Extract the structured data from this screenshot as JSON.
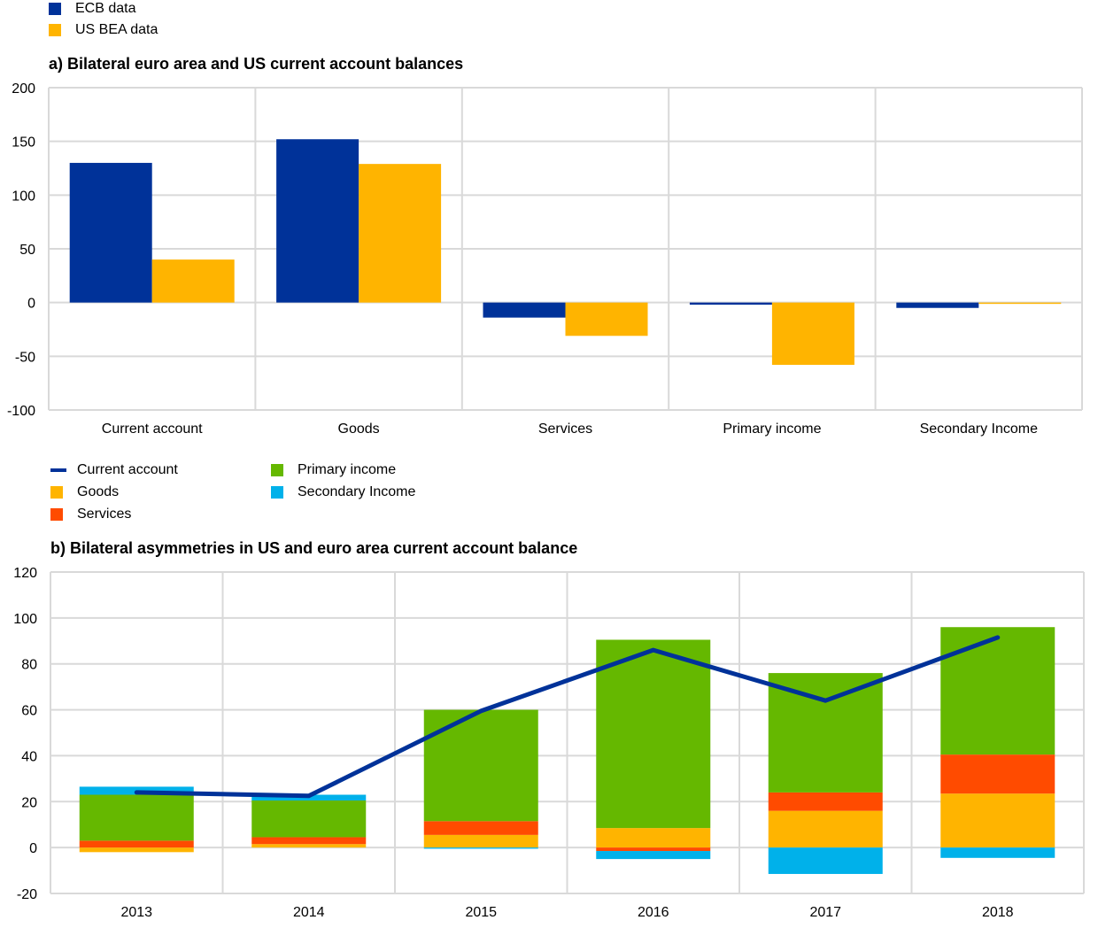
{
  "colors": {
    "ecb": "#003299",
    "us_bea": "#FFB400",
    "current_account": "#003299",
    "goods": "#FFB400",
    "services": "#FF4B00",
    "primary_income": "#65B800",
    "secondary_income": "#00B1EA",
    "grid": "#d9d9d9"
  },
  "chart_a_legend": [
    {
      "label": "ECB data",
      "color_key": "ecb",
      "kind": "box"
    },
    {
      "label": "US BEA data",
      "color_key": "us_bea",
      "kind": "box"
    }
  ],
  "chart_b_legend": [
    {
      "label": "Current account",
      "color_key": "current_account",
      "kind": "line"
    },
    {
      "label": "Goods",
      "color_key": "goods",
      "kind": "box"
    },
    {
      "label": "Services",
      "color_key": "services",
      "kind": "box"
    },
    {
      "label": "Primary income",
      "color_key": "primary_income",
      "kind": "box"
    },
    {
      "label": "Secondary Income",
      "color_key": "secondary_income",
      "kind": "box"
    }
  ],
  "chart_data": [
    {
      "type": "bar",
      "title": "a) Bilateral euro area and US current account balances",
      "categories": [
        "Current account",
        "Goods",
        "Services",
        "Primary income",
        "Secondary Income"
      ],
      "series": [
        {
          "name": "ECB data",
          "values": [
            130,
            152,
            -14,
            -2,
            -5
          ]
        },
        {
          "name": "US BEA data",
          "values": [
            40,
            129,
            -31,
            -58,
            -1
          ]
        }
      ],
      "xlabel": "",
      "ylabel": "",
      "ylim": [
        -100,
        200
      ],
      "yticks": [
        200,
        150,
        100,
        50,
        0,
        -50,
        -100
      ],
      "grid": true,
      "legend": "top-left"
    },
    {
      "type": "bar",
      "stacked": true,
      "title": "b) Bilateral asymmetries in US and euro area current account balance",
      "categories": [
        "2013",
        "2014",
        "2015",
        "2016",
        "2017",
        "2018"
      ],
      "series": [
        {
          "name": "Goods",
          "values": [
            -2,
            1.5,
            5.5,
            8.5,
            16,
            23.5
          ]
        },
        {
          "name": "Services",
          "values": [
            3,
            3,
            6,
            -1.5,
            8,
            17
          ]
        },
        {
          "name": "Primary income",
          "values": [
            20,
            16,
            48.5,
            82,
            52,
            55.5
          ]
        },
        {
          "name": "Secondary Income",
          "values": [
            3.5,
            2.5,
            -0.5,
            -3.5,
            -11.5,
            -4.5
          ]
        },
        {
          "name": "Current account",
          "type": "line",
          "values": [
            24,
            22.5,
            59.5,
            86,
            64,
            91.5
          ]
        }
      ],
      "xlabel": "",
      "ylabel": "",
      "ylim": [
        -20,
        120
      ],
      "yticks": [
        120,
        100,
        80,
        60,
        40,
        20,
        0,
        -20
      ],
      "grid": true,
      "legend": "top-left"
    }
  ]
}
